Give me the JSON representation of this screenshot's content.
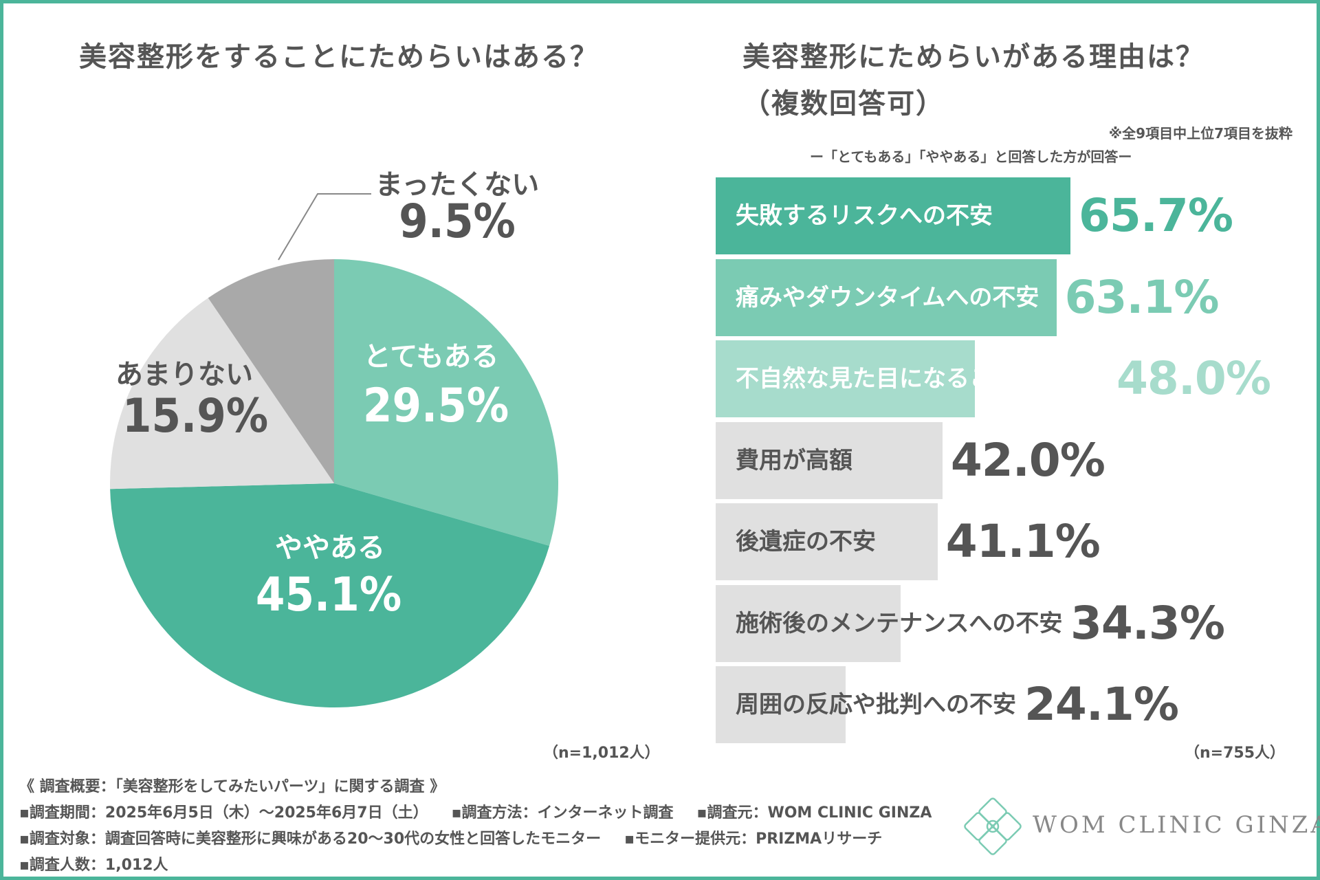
{
  "left_title": "美容整形をすることにためらいはある？",
  "right_title": "美容整形にためらいがある理由は？",
  "right_subtitle": "（複数回答可）",
  "note_top": "※全9項目中上位7項目を抜粋",
  "note_respondents": "ー「とてもある」「ややある」と回答した方が回答ー",
  "pie_n": "（n=1,012人）",
  "bar_n": "（n=755人）",
  "colors": {
    "frame": "#4bb59a",
    "dark_green": "#4bb59a",
    "mid_green": "#7bcbb3",
    "light_green": "#a7dccc",
    "light_gray": "#e0e0e0",
    "mid_gray": "#a9a9a9",
    "text_gray": "#555555"
  },
  "chart_data": [
    {
      "type": "pie",
      "title": "美容整形をすることにためらいはある？",
      "slices": [
        {
          "label": "とてもある",
          "value": 29.5,
          "display": "29.5%",
          "color": "#7bcbb3",
          "text_color": "#ffffff"
        },
        {
          "label": "ややある",
          "value": 45.1,
          "display": "45.1%",
          "color": "#4bb59a",
          "text_color": "#ffffff"
        },
        {
          "label": "あまりない",
          "value": 15.9,
          "display": "15.9%",
          "color": "#e0e0e0",
          "text_color": "#555555"
        },
        {
          "label": "まったくない",
          "value": 9.5,
          "display": "9.5%",
          "color": "#a9a9a9",
          "text_color": "#555555"
        }
      ],
      "n": "n=1,012人"
    },
    {
      "type": "bar",
      "orientation": "horizontal",
      "title": "美容整形にためらいがある理由は？（複数回答可）",
      "xlim": [
        0,
        100
      ],
      "categories": [
        "失敗するリスクへの不安",
        "痛みやダウンタイムへの不安",
        "不自然な見た目になることへの不安",
        "費用が高額",
        "後遺症の不安",
        "施術後のメンテナンスへの不安",
        "周囲の反応や批判への不安"
      ],
      "values": [
        65.7,
        63.1,
        48.0,
        42.0,
        41.1,
        34.3,
        24.1
      ],
      "labels": [
        "65.7%",
        "63.1%",
        "48.0%",
        "42.0%",
        "41.1%",
        "34.3%",
        "24.1%"
      ],
      "bar_colors": [
        "#4bb59a",
        "#7bcbb3",
        "#a7dccc",
        "#e0e0e0",
        "#e0e0e0",
        "#e0e0e0",
        "#e0e0e0"
      ],
      "value_colors": [
        "#4bb59a",
        "#7bcbb3",
        "#a7dccc",
        "#555555",
        "#555555",
        "#555555",
        "#555555"
      ],
      "label_colors": [
        "#ffffff",
        "#ffffff",
        "#ffffff",
        "#555555",
        "#555555",
        "#555555",
        "#555555"
      ],
      "n": "n=755人"
    }
  ],
  "footer": {
    "overview": "《 調査概要：「美容整形をしてみたいパーツ」に関する調査 》",
    "period": "▪調査期間：2025年6月5日（木）～2025年6月7日（土）",
    "method": "▪調査方法：インターネット調査",
    "source": "▪調査元：WOM CLINIC GINZA",
    "target": "▪調査対象：調査回答時に美容整形に興味がある20～30代の女性と回答したモニター",
    "provider": "▪モニター提供元：PRIZMAリサーチ",
    "count": "▪調査人数：1,012人"
  },
  "logo": {
    "text": "WOM CLINIC GINZA",
    "icon": "flower-logo-icon"
  }
}
